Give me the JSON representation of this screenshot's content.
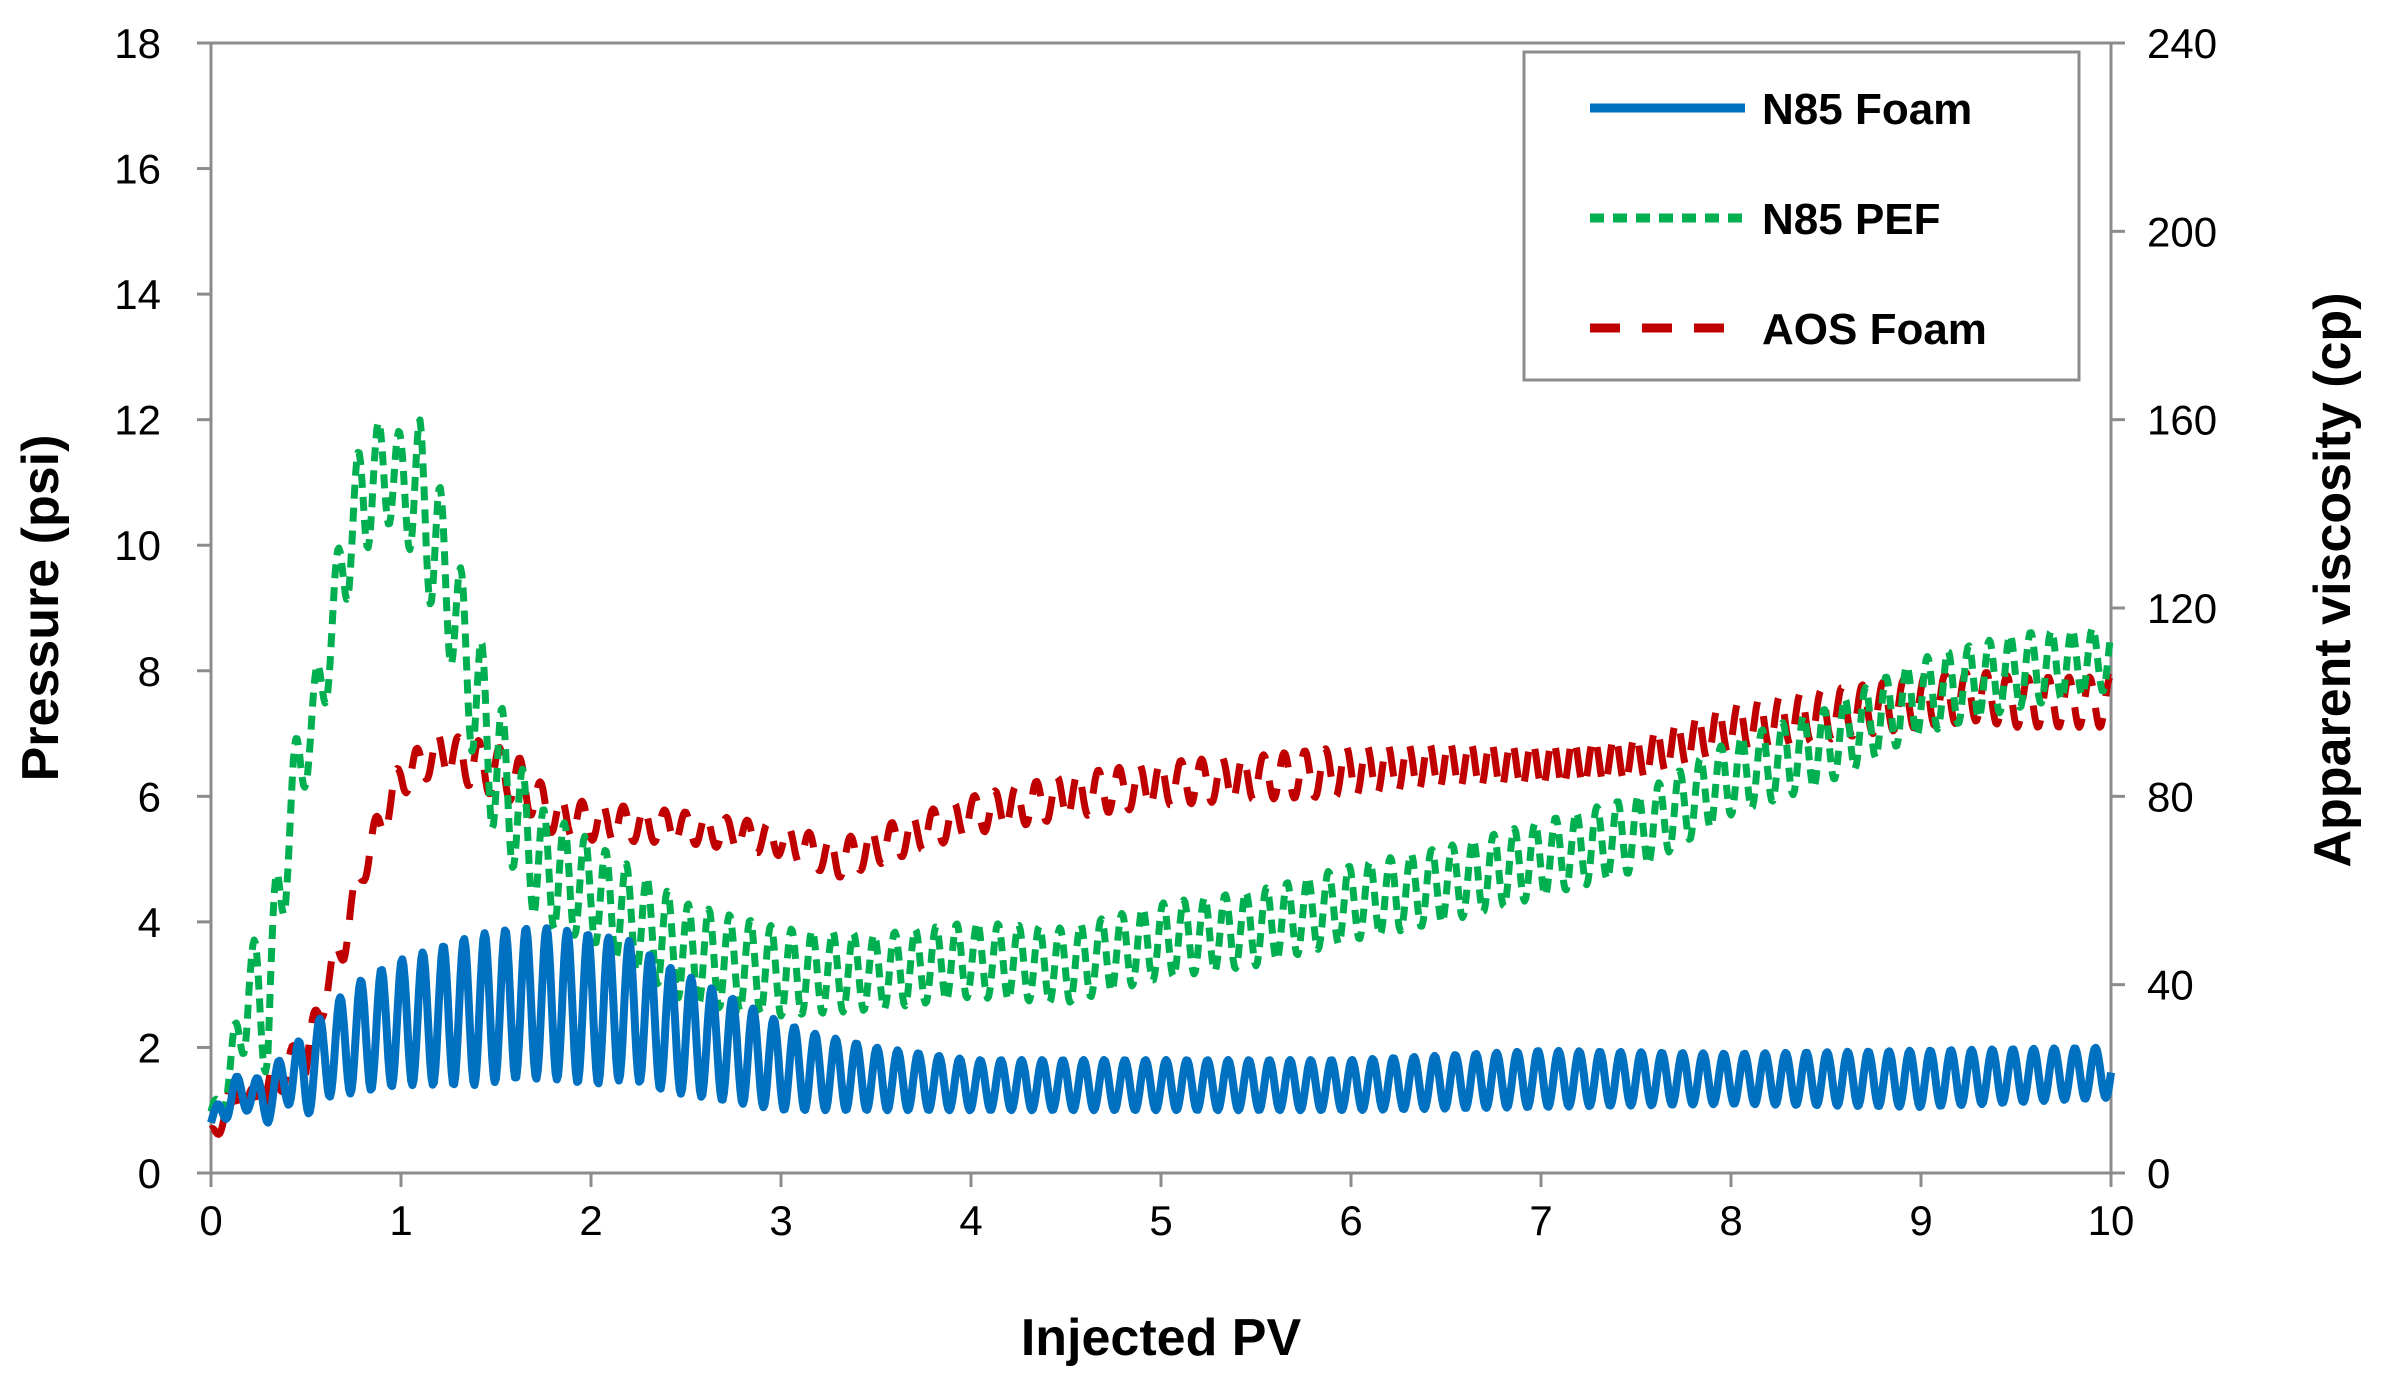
{
  "chart_data": {
    "type": "line",
    "xlabel": "Injected PV",
    "ylabel": "Pressure (psi)",
    "y2label": "Apparent viscosity  (cp)",
    "xlim": [
      0,
      10
    ],
    "ylim": [
      0,
      18
    ],
    "y2lim": [
      0,
      240
    ],
    "xticks": [
      "0",
      "1",
      "2",
      "3",
      "4",
      "5",
      "6",
      "7",
      "8",
      "9",
      "10"
    ],
    "yticks": [
      "0",
      "2",
      "4",
      "6",
      "8",
      "10",
      "12",
      "14",
      "16",
      "18"
    ],
    "y2ticks": [
      "0",
      "40",
      "80",
      "120",
      "160",
      "200",
      "240"
    ],
    "grid": false,
    "legend_position": "top-right",
    "series": [
      {
        "name": "N85 Foam",
        "style": "solid",
        "color": "#0070C0",
        "x": [
          0,
          0.1,
          0.2,
          0.3,
          0.4,
          0.5,
          0.6,
          0.8,
          1.0,
          1.2,
          1.4,
          1.6,
          1.8,
          2.0,
          2.2,
          2.4,
          2.6,
          2.8,
          3.0,
          3.2,
          3.5,
          4.0,
          5.0,
          6.0,
          7.0,
          8.0,
          9.0,
          10.0
        ],
        "y": [
          0.8,
          1.2,
          1.3,
          1.1,
          1.6,
          1.5,
          1.9,
          2.2,
          2.4,
          2.5,
          2.6,
          2.7,
          2.7,
          2.6,
          2.6,
          2.3,
          2.1,
          1.9,
          1.7,
          1.6,
          1.5,
          1.4,
          1.4,
          1.4,
          1.5,
          1.5,
          1.5,
          1.6
        ],
        "oscillation_amplitude": [
          0.1,
          0.3,
          0.3,
          0.3,
          0.5,
          0.6,
          0.7,
          0.9,
          1.0,
          1.1,
          1.2,
          1.2,
          1.2,
          1.2,
          1.1,
          1.0,
          0.9,
          0.8,
          0.7,
          0.6,
          0.5,
          0.4,
          0.4,
          0.4,
          0.45,
          0.4,
          0.45,
          0.4
        ],
        "oscillation_cycles_per_pv": 9.2
      },
      {
        "name": "N85 PEF",
        "style": "dotted",
        "color": "#00B050",
        "x": [
          0,
          0.1,
          0.2,
          0.3,
          0.4,
          0.5,
          0.6,
          0.7,
          0.8,
          0.9,
          1.0,
          1.1,
          1.2,
          1.3,
          1.4,
          1.5,
          1.6,
          1.7,
          1.8,
          2.0,
          2.2,
          2.5,
          3.0,
          3.5,
          4.0,
          4.5,
          5.0,
          5.5,
          6.0,
          6.5,
          7.0,
          7.5,
          8.0,
          8.5,
          9.0,
          9.5,
          10.0
        ],
        "y": [
          0.9,
          1.5,
          3.0,
          2.5,
          5.5,
          6.8,
          8.0,
          9.8,
          10.8,
          11.2,
          11.0,
          10.8,
          9.8,
          8.8,
          7.5,
          6.5,
          5.8,
          5.0,
          4.8,
          4.5,
          4.1,
          3.5,
          3.2,
          3.2,
          3.4,
          3.3,
          3.7,
          3.9,
          4.3,
          4.6,
          5.0,
          5.4,
          6.3,
          6.8,
          7.6,
          8.0,
          8.2
        ],
        "oscillation_amplitude": [
          0.1,
          0.4,
          0.8,
          1.0,
          1.0,
          0.6,
          0.6,
          0.8,
          1.0,
          0.8,
          0.8,
          1.2,
          1.2,
          1.0,
          1.2,
          1.2,
          1.0,
          0.9,
          0.9,
          0.8,
          0.8,
          0.8,
          0.7,
          0.6,
          0.6,
          0.6,
          0.6,
          0.6,
          0.6,
          0.6,
          0.6,
          0.6,
          0.6,
          0.6,
          0.6,
          0.6,
          0.5
        ],
        "oscillation_cycles_per_pv": 9.2
      },
      {
        "name": "AOS Foam",
        "style": "dashed",
        "color": "#C00000",
        "x": [
          0,
          0.1,
          0.2,
          0.3,
          0.4,
          0.5,
          0.6,
          0.7,
          0.8,
          0.9,
          1.0,
          1.2,
          1.4,
          1.6,
          1.8,
          2.0,
          2.5,
          3.0,
          3.3,
          3.5,
          4.0,
          4.5,
          5.0,
          5.5,
          6.0,
          6.5,
          7.0,
          7.5,
          8.0,
          8.5,
          9.0,
          9.3,
          9.5,
          10.0
        ],
        "y": [
          0.5,
          1.2,
          1.1,
          1.3,
          1.7,
          1.8,
          2.9,
          3.7,
          4.9,
          5.6,
          6.3,
          6.7,
          6.5,
          6.3,
          5.7,
          5.6,
          5.5,
          5.3,
          5.0,
          5.2,
          5.7,
          6.0,
          6.2,
          6.3,
          6.4,
          6.5,
          6.5,
          6.6,
          7.1,
          7.3,
          7.5,
          7.6,
          7.5,
          7.5
        ],
        "oscillation_amplitude": [
          0.2,
          0.2,
          0.2,
          0.3,
          0.3,
          0.3,
          0.3,
          0.3,
          0.3,
          0.3,
          0.3,
          0.3,
          0.4,
          0.4,
          0.3,
          0.3,
          0.25,
          0.25,
          0.3,
          0.3,
          0.3,
          0.35,
          0.35,
          0.35,
          0.4,
          0.4,
          0.4,
          0.4,
          0.4,
          0.4,
          0.4,
          0.4,
          0.4,
          0.4
        ],
        "oscillation_cycles_per_pv": 9.2
      }
    ]
  }
}
